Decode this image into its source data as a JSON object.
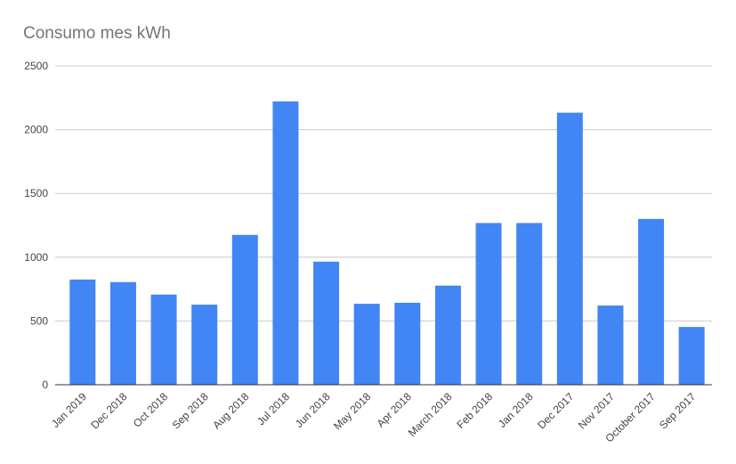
{
  "chart_data": {
    "type": "bar",
    "title": "Consumo mes kWh",
    "xlabel": "",
    "ylabel": "",
    "categories": [
      "Jan 2019",
      "Dec 2018",
      "Oct 2018",
      "Sep 2018",
      "Aug 2018",
      "Jul 2018",
      "Jun 2018",
      "May 2018",
      "Apr 2018",
      "March 2018",
      "Feb 2018",
      "Jan 2018",
      "Dec 2017",
      "Nov 2017",
      "October 2017",
      "Sep 2017"
    ],
    "values": [
      825,
      805,
      707,
      628,
      1175,
      2222,
      965,
      635,
      643,
      777,
      1268,
      1268,
      2133,
      621,
      1300,
      453
    ],
    "ylim": [
      0,
      2500
    ],
    "yticks": [
      "0",
      "500",
      "1000",
      "1500",
      "2000",
      "2500"
    ],
    "grid": true,
    "legend": "none",
    "bar_color": "#4285F4",
    "grid_color": "#cccccc",
    "axis_color": "#333333"
  }
}
